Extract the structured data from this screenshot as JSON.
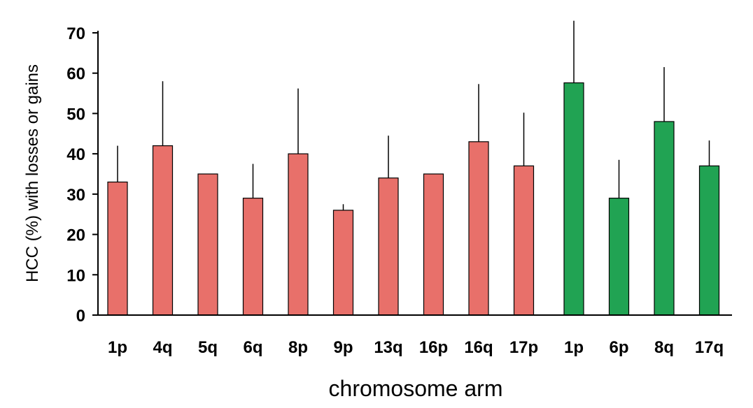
{
  "chart_data": {
    "type": "bar",
    "title": "",
    "xlabel": "chromosome arm",
    "ylabel": "HCC (%) with losses or gains",
    "ylim": [
      0,
      70
    ],
    "yticks": [
      "0",
      "10",
      "20",
      "30",
      "40",
      "50",
      "60",
      "70"
    ],
    "grid": false,
    "legend": "none",
    "categories": [
      "1p",
      "4q",
      "5q",
      "6q",
      "8p",
      "9p",
      "13q",
      "16p",
      "16q",
      "17p",
      "1p",
      "6p",
      "8q",
      "17q"
    ],
    "series": [
      {
        "color": "#e8706a",
        "points": [
          {
            "category": "1p",
            "value": 33,
            "error": 9
          },
          {
            "category": "4q",
            "value": 42,
            "error": 16
          },
          {
            "category": "5q",
            "value": 35,
            "error": 0
          },
          {
            "category": "6q",
            "value": 29,
            "error": 8.5
          },
          {
            "category": "8p",
            "value": 40,
            "error": 16.2
          },
          {
            "category": "9p",
            "value": 26,
            "error": 1.5
          },
          {
            "category": "13q",
            "value": 34,
            "error": 10.5
          },
          {
            "category": "16p",
            "value": 35,
            "error": 0
          },
          {
            "category": "16q",
            "value": 43,
            "error": 14.3
          },
          {
            "category": "17p",
            "value": 37,
            "error": 13.2
          }
        ]
      },
      {
        "color": "#21a353",
        "points": [
          {
            "category": "1p",
            "value": 57.6,
            "error": 15.4
          },
          {
            "category": "6p",
            "value": 29,
            "error": 9.5
          },
          {
            "category": "8q",
            "value": 48,
            "error": 13.5
          },
          {
            "category": "17q",
            "value": 37,
            "error": 6.3
          }
        ]
      }
    ]
  }
}
